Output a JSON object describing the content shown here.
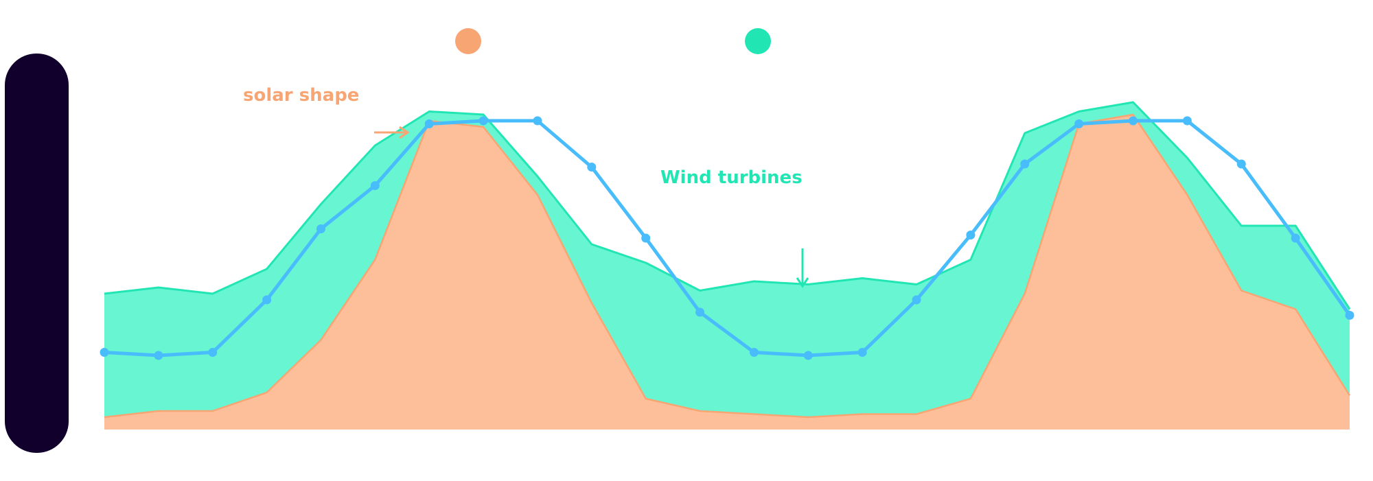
{
  "chart_data": {
    "type": "area",
    "title": "",
    "xlabel": "",
    "ylabel": "",
    "x": [
      0,
      1,
      2,
      3,
      4,
      5,
      6,
      7,
      8,
      9,
      10,
      11,
      12,
      13,
      14,
      15,
      16,
      17,
      18,
      19,
      20,
      21,
      22,
      23
    ],
    "ylim": [
      0,
      100
    ],
    "series": [
      {
        "key": "solar",
        "kind": "stacked-area",
        "color": "#fdbf9a",
        "stroke": "#f8a574",
        "values": [
          4,
          6,
          6,
          12,
          29,
          55,
          100,
          98,
          76,
          41,
          10,
          6,
          5,
          4,
          5,
          5,
          10,
          44,
          99,
          102,
          76,
          45,
          39,
          11
        ]
      },
      {
        "key": "wind",
        "kind": "stacked-area",
        "color": "#68f5d2",
        "stroke": "#21e6b4",
        "values": [
          40,
          40,
          38,
          40,
          44,
          37,
          3,
          4,
          6,
          19,
          44,
          39,
          43,
          43,
          44,
          42,
          45,
          52,
          4,
          4,
          12,
          21,
          27,
          28
        ]
      },
      {
        "key": "demand",
        "kind": "line",
        "color": "#49bdfc",
        "values": [
          25,
          24,
          25,
          42,
          65,
          79,
          99,
          100,
          100,
          85,
          62,
          38,
          25,
          24,
          25,
          42,
          63,
          86,
          99,
          100,
          100,
          86,
          62,
          37
        ]
      }
    ],
    "annotations": [
      {
        "key": "solar_label",
        "text": "solar shape",
        "color": "#f8a574",
        "arrow": "right"
      },
      {
        "key": "wind_label",
        "text": "Wind turbines",
        "color": "#21e6b4",
        "arrow": "down"
      }
    ],
    "legend": {
      "placement": "top",
      "markers": [
        {
          "key": "solar",
          "color": "#f8a574"
        },
        {
          "key": "wind",
          "color": "#21e6b4"
        }
      ]
    },
    "grid": false
  },
  "decor": {
    "left_bar_color": "#10002b"
  }
}
